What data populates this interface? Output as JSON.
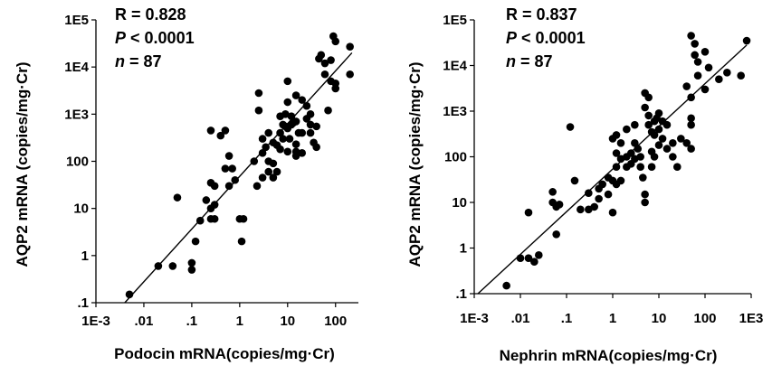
{
  "chart_data": [
    {
      "type": "scatter",
      "xlabel": "Podocin mRNA(copies/mg·Cr)",
      "ylabel": "AQP2 mRNA (copies/mg·Cr)",
      "x_scale": "log",
      "y_scale": "log",
      "xlim": [
        0.001,
        300
      ],
      "ylim": [
        0.1,
        100000
      ],
      "x_ticks": [
        "1E-3",
        ".01",
        ".1",
        "1",
        "10",
        "100"
      ],
      "y_ticks": [
        ".1",
        "1",
        "10",
        "100",
        "1E3",
        "1E4",
        "1E5"
      ],
      "stats": {
        "r_label": "R = 0.828",
        "p_name": "P",
        "p_rest": " < 0.0001",
        "n_name": "n",
        "n_rest": " = 87"
      },
      "regression": [
        [
          0.004,
          0.1
        ],
        [
          220,
          20000
        ]
      ],
      "points": [
        [
          0.005,
          0.15
        ],
        [
          0.02,
          0.6
        ],
        [
          0.04,
          0.6
        ],
        [
          0.05,
          17
        ],
        [
          0.1,
          0.7
        ],
        [
          0.1,
          0.5
        ],
        [
          0.12,
          2
        ],
        [
          0.15,
          5.5
        ],
        [
          0.25,
          6
        ],
        [
          0.25,
          10
        ],
        [
          0.2,
          15
        ],
        [
          0.3,
          6
        ],
        [
          0.3,
          12
        ],
        [
          0.25,
          35
        ],
        [
          0.3,
          30
        ],
        [
          0.25,
          450
        ],
        [
          0.4,
          350
        ],
        [
          0.5,
          450
        ],
        [
          0.5,
          70
        ],
        [
          0.6,
          130
        ],
        [
          0.7,
          70
        ],
        [
          0.6,
          30
        ],
        [
          0.8,
          40
        ],
        [
          1,
          6
        ],
        [
          1.2,
          6
        ],
        [
          1.1,
          2
        ],
        [
          2,
          100
        ],
        [
          2.5,
          2800
        ],
        [
          2.5,
          1200
        ],
        [
          3,
          300
        ],
        [
          3.5,
          200
        ],
        [
          3,
          150
        ],
        [
          4,
          100
        ],
        [
          4,
          60
        ],
        [
          4,
          400
        ],
        [
          5,
          250
        ],
        [
          5,
          90
        ],
        [
          6,
          60
        ],
        [
          5,
          45
        ],
        [
          3,
          45
        ],
        [
          2.3,
          30
        ],
        [
          7,
          400
        ],
        [
          7,
          180
        ],
        [
          8,
          600
        ],
        [
          8,
          300
        ],
        [
          9,
          550
        ],
        [
          10,
          500
        ],
        [
          10,
          160
        ],
        [
          11,
          300
        ],
        [
          12,
          900
        ],
        [
          12,
          600
        ],
        [
          15,
          700
        ],
        [
          15,
          230
        ],
        [
          17,
          400
        ],
        [
          15,
          160
        ],
        [
          20,
          400
        ],
        [
          20,
          150
        ],
        [
          25,
          1500
        ],
        [
          25,
          800
        ],
        [
          30,
          600
        ],
        [
          30,
          400
        ],
        [
          35,
          250
        ],
        [
          40,
          200
        ],
        [
          10,
          5000
        ],
        [
          10,
          1800
        ],
        [
          7,
          900
        ],
        [
          15,
          2500
        ],
        [
          20,
          2000
        ],
        [
          30,
          1000
        ],
        [
          40,
          550
        ],
        [
          50,
          18000
        ],
        [
          60,
          7000
        ],
        [
          60,
          12000
        ],
        [
          80,
          14000
        ],
        [
          90,
          45000
        ],
        [
          100,
          35000
        ],
        [
          100,
          4500
        ],
        [
          100,
          3500
        ],
        [
          80,
          5000
        ],
        [
          70,
          1200
        ],
        [
          200,
          27000
        ],
        [
          200,
          7000
        ],
        [
          45,
          15000
        ],
        [
          15,
          130
        ],
        [
          9,
          1000
        ],
        [
          13,
          650
        ],
        [
          6,
          220
        ]
      ]
    },
    {
      "type": "scatter",
      "xlabel": "Nephrin mRNA(copies/mg·Cr)",
      "ylabel": "AQP2 mRNA (copies/mg·Cr)",
      "x_scale": "log",
      "y_scale": "log",
      "xlim": [
        0.001,
        1000
      ],
      "ylim": [
        0.1,
        100000
      ],
      "x_ticks": [
        "1E-3",
        ".01",
        ".1",
        "1",
        "10",
        "100",
        "1E3"
      ],
      "y_ticks": [
        ".1",
        "1",
        "10",
        "100",
        "1E3",
        "1E4",
        "1E5"
      ],
      "stats": {
        "r_label": "R = 0.837",
        "p_name": "P",
        "p_rest": " < 0.0001",
        "n_name": "n",
        "n_rest": " = 87"
      },
      "regression": [
        [
          0.0012,
          0.1
        ],
        [
          800,
          28000
        ]
      ],
      "points": [
        [
          0.005,
          0.15
        ],
        [
          0.01,
          0.6
        ],
        [
          0.015,
          0.6
        ],
        [
          0.02,
          0.5
        ],
        [
          0.025,
          0.7
        ],
        [
          0.015,
          6
        ],
        [
          0.05,
          17
        ],
        [
          0.06,
          2
        ],
        [
          0.05,
          10
        ],
        [
          0.06,
          8
        ],
        [
          0.07,
          9
        ],
        [
          0.12,
          450
        ],
        [
          0.15,
          30
        ],
        [
          0.2,
          7
        ],
        [
          0.3,
          7
        ],
        [
          0.3,
          16
        ],
        [
          0.4,
          8
        ],
        [
          0.5,
          12
        ],
        [
          0.5,
          20
        ],
        [
          0.6,
          25
        ],
        [
          0.8,
          35
        ],
        [
          0.8,
          15
        ],
        [
          1,
          30
        ],
        [
          1,
          6
        ],
        [
          1.2,
          25
        ],
        [
          1.2,
          60
        ],
        [
          1.2,
          120
        ],
        [
          1.5,
          30
        ],
        [
          1.5,
          90
        ],
        [
          1,
          250
        ],
        [
          1.2,
          300
        ],
        [
          1.5,
          200
        ],
        [
          2,
          400
        ],
        [
          2,
          100
        ],
        [
          2,
          60
        ],
        [
          2.5,
          120
        ],
        [
          2.5,
          70
        ],
        [
          3,
          500
        ],
        [
          3,
          200
        ],
        [
          3,
          90
        ],
        [
          3.5,
          150
        ],
        [
          4,
          100
        ],
        [
          4,
          60
        ],
        [
          4.5,
          35
        ],
        [
          5,
          15
        ],
        [
          5,
          10
        ],
        [
          5,
          2500
        ],
        [
          6,
          2000
        ],
        [
          5,
          1200
        ],
        [
          6,
          800
        ],
        [
          6,
          500
        ],
        [
          7,
          350
        ],
        [
          7,
          130
        ],
        [
          7,
          60
        ],
        [
          8,
          600
        ],
        [
          8,
          300
        ],
        [
          8,
          100
        ],
        [
          10,
          900
        ],
        [
          10,
          400
        ],
        [
          10,
          180
        ],
        [
          12,
          600
        ],
        [
          12,
          250
        ],
        [
          15,
          500
        ],
        [
          15,
          150
        ],
        [
          20,
          200
        ],
        [
          20,
          100
        ],
        [
          25,
          60
        ],
        [
          30,
          250
        ],
        [
          40,
          200
        ],
        [
          50,
          150
        ],
        [
          50,
          500
        ],
        [
          50,
          700
        ],
        [
          50,
          2000
        ],
        [
          40,
          3500
        ],
        [
          50,
          45000
        ],
        [
          60,
          30000
        ],
        [
          60,
          17000
        ],
        [
          70,
          12000
        ],
        [
          70,
          6000
        ],
        [
          100,
          20000
        ],
        [
          100,
          3000
        ],
        [
          120,
          9000
        ],
        [
          200,
          5000
        ],
        [
          300,
          7000
        ],
        [
          600,
          6000
        ],
        [
          800,
          35000
        ],
        [
          9,
          700
        ]
      ]
    }
  ]
}
